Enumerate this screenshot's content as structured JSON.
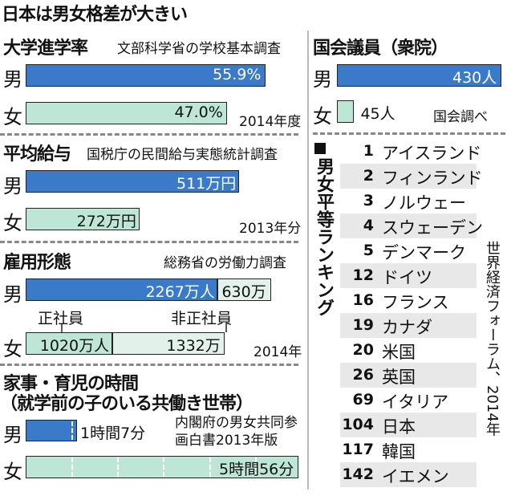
{
  "title": "日本は男女格差が大きい",
  "labels": {
    "male": "男",
    "female": "女"
  },
  "colors": {
    "male_bar": "#3a7ac8",
    "female_bar": "#bde6d6",
    "female_bar_light": "#e2f2ea"
  },
  "chart_data": [
    {
      "type": "bar",
      "title": "大学進学率",
      "source": "文部科学省の学校基本調査",
      "note": "2014年度",
      "categories": [
        "男",
        "女"
      ],
      "values": [
        55.9,
        47.0
      ],
      "value_labels": [
        "55.9%",
        "47.0%"
      ]
    },
    {
      "type": "bar",
      "title": "平均給与",
      "source": "国税庁の民間給与実態統計調査",
      "note": "2013年分",
      "categories": [
        "男",
        "女"
      ],
      "values": [
        511,
        272
      ],
      "value_labels": [
        "511万円",
        "272万円"
      ]
    },
    {
      "type": "bar",
      "title": "雇用形態",
      "source": "総務省の労働力調査",
      "note": "2014年",
      "categories": [
        "男",
        "女"
      ],
      "series": [
        {
          "name": "正社員",
          "values": [
            2267,
            1020
          ],
          "value_labels": [
            "2267万人",
            "1020万人"
          ]
        },
        {
          "name": "非正社員",
          "values": [
            630,
            1332
          ],
          "value_labels": [
            "630万",
            "1332万"
          ]
        }
      ]
    },
    {
      "type": "bar",
      "title": "家事・育児の時間",
      "subtitle": "（就学前の子のいる共働き世帯）",
      "source": "内閣府の男女共同参画白書2013年版",
      "categories": [
        "男",
        "女"
      ],
      "values": [
        67,
        356
      ],
      "value_labels": [
        "1時間7分",
        "5時間56分"
      ]
    },
    {
      "type": "bar",
      "title": "国会議員（衆院）",
      "source": "国会調べ",
      "categories": [
        "男",
        "女"
      ],
      "values": [
        430,
        45
      ],
      "value_labels": [
        "430人",
        "45人"
      ]
    },
    {
      "type": "table",
      "title": "男女平等ランキング",
      "source": "世界経済フォーラム、2014年",
      "rows": [
        {
          "rank": "1",
          "country": "アイスランド"
        },
        {
          "rank": "2",
          "country": "フィンランド"
        },
        {
          "rank": "3",
          "country": "ノルウェー"
        },
        {
          "rank": "4",
          "country": "スウェーデン"
        },
        {
          "rank": "5",
          "country": "デンマーク"
        },
        {
          "rank": "12",
          "country": "ドイツ"
        },
        {
          "rank": "16",
          "country": "フランス"
        },
        {
          "rank": "19",
          "country": "カナダ"
        },
        {
          "rank": "20",
          "country": "米国"
        },
        {
          "rank": "26",
          "country": "英国"
        },
        {
          "rank": "69",
          "country": "イタリア"
        },
        {
          "rank": "104",
          "country": "日本"
        },
        {
          "rank": "117",
          "country": "韓国"
        },
        {
          "rank": "142",
          "country": "イエメン"
        }
      ]
    }
  ]
}
